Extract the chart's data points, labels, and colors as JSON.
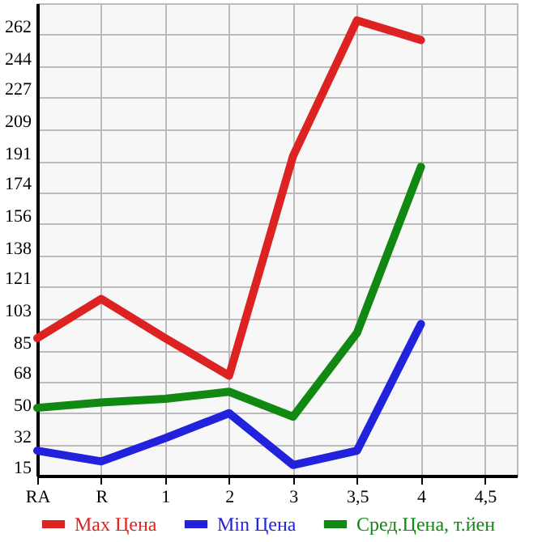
{
  "chart_data": {
    "type": "line",
    "categories": [
      "RA",
      "R",
      "1",
      "2",
      "3",
      "3,5",
      "4",
      "4,5"
    ],
    "series": [
      {
        "name": "Max Цена",
        "color": "#dd2222",
        "values": [
          92,
          114,
          92,
          71,
          194,
          270,
          259,
          null
        ]
      },
      {
        "name": "Min Цена",
        "color": "#2222dd",
        "values": [
          29,
          23,
          36,
          50,
          21,
          29,
          100,
          null
        ]
      },
      {
        "name": "Сред.Цена, т.йен",
        "color": "#118811",
        "values": [
          53,
          56,
          58,
          62,
          48,
          95,
          188,
          null
        ]
      }
    ],
    "ylim": [
      15,
      279.6
    ],
    "yticks": [
      15,
      32,
      50,
      68,
      85,
      103,
      121,
      138,
      156,
      174,
      191,
      209,
      227,
      244,
      262
    ],
    "grid": true,
    "legend": "bottom",
    "line_style": "solid",
    "marker": "none"
  }
}
